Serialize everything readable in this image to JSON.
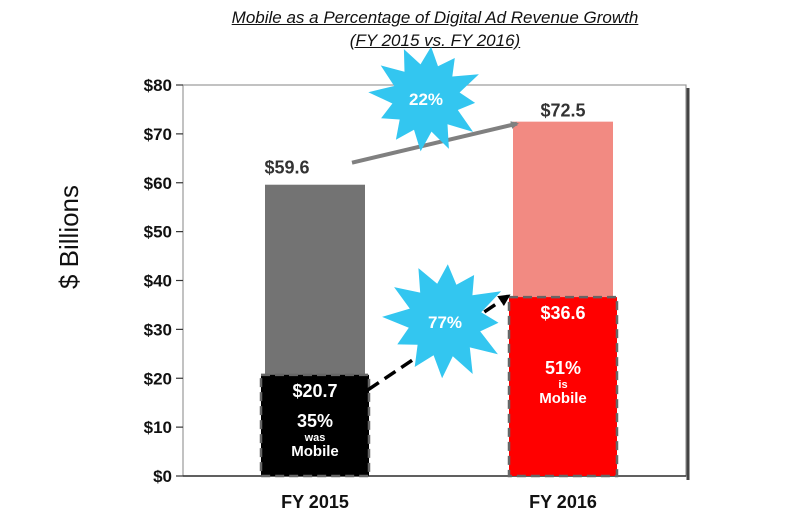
{
  "title_line1": "Mobile as a Percentage of Digital Ad Revenue Growth",
  "title_line2": "(FY 2015 vs. FY 2016)",
  "chart_data": {
    "type": "bar",
    "categories": [
      "FY 2015",
      "FY 2016"
    ],
    "total_values": [
      59.6,
      72.5
    ],
    "mobile_values": [
      20.7,
      36.6
    ],
    "ylabel": "$ Billions",
    "ylim": [
      0,
      80
    ],
    "yticks": [
      0,
      10,
      20,
      30,
      40,
      50,
      60,
      70,
      80
    ],
    "ytick_labels": [
      "$0",
      "$10",
      "$20",
      "$30",
      "$40",
      "$50",
      "$60",
      "$70",
      "$80"
    ],
    "total_labels": [
      "$59.6",
      "$72.5"
    ],
    "mobile_labels": [
      "$20.7",
      "$36.6"
    ],
    "mobile_pct": [
      "35%",
      "51%"
    ],
    "mobile_word": [
      "was",
      "is"
    ],
    "mobile_text": [
      "Mobile",
      "Mobile"
    ],
    "growth_callouts": {
      "total": "22%",
      "mobile": "77%"
    },
    "colors": {
      "fy2015_total": "#737373",
      "fy2015_mobile": "#000000",
      "fy2016_total": "#f28a82",
      "fy2016_mobile": "#ff0000",
      "callout": "#33c6f0",
      "arrow_total": "#808080",
      "arrow_mobile": "#000000"
    }
  }
}
